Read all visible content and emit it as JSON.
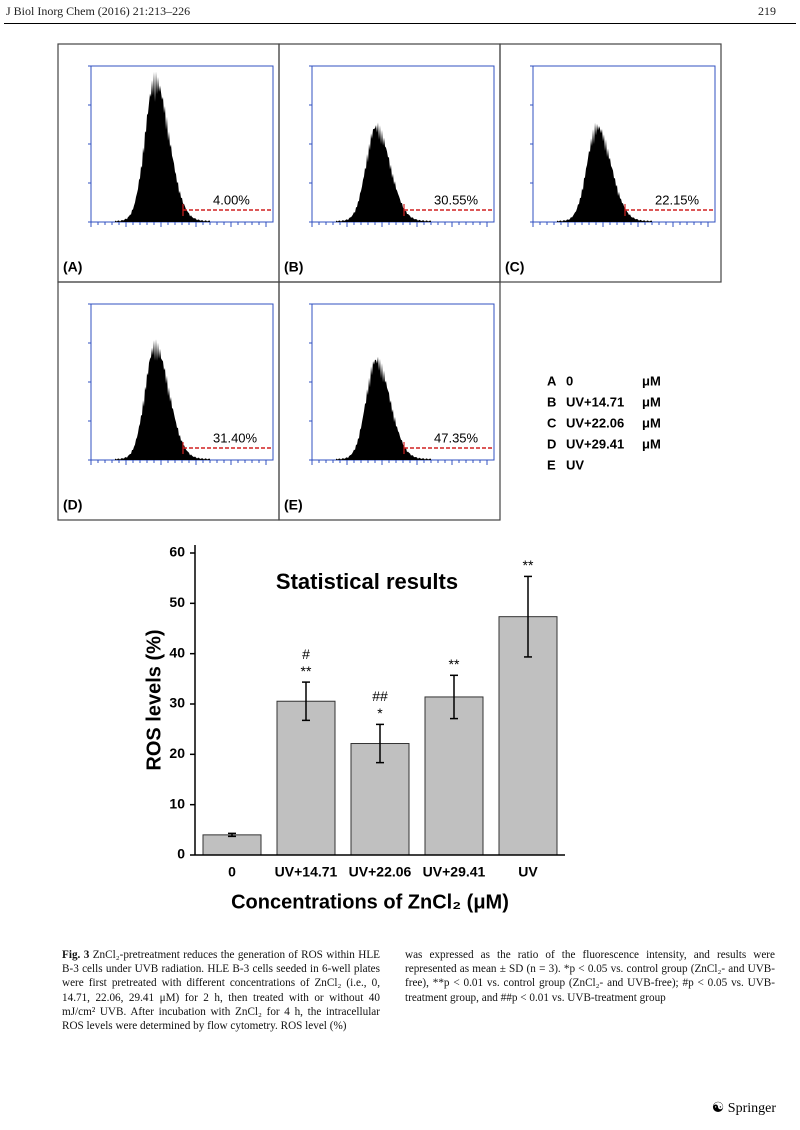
{
  "header": {
    "journal": "J Biol Inorg Chem (2016) 21:213–226",
    "page": "219"
  },
  "panels": [
    {
      "label": "(A)",
      "percent": "4.00%"
    },
    {
      "label": "(B)",
      "percent": "30.55%"
    },
    {
      "label": "(C)",
      "percent": "22.15%"
    },
    {
      "label": "(D)",
      "percent": "31.40%"
    },
    {
      "label": "(E)",
      "percent": "47.35%"
    }
  ],
  "legend": [
    {
      "letter": "A",
      "label": "0",
      "unit": "μM"
    },
    {
      "letter": "B",
      "label": "UV+14.71",
      "unit": "μM"
    },
    {
      "letter": "C",
      "label": "UV+22.06",
      "unit": "μM"
    },
    {
      "letter": "D",
      "label": "UV+29.41",
      "unit": "μM"
    },
    {
      "letter": "E",
      "label": "UV"
    }
  ],
  "chart_data": {
    "type": "bar",
    "title": "Statistical results",
    "y_label": "ROS levels (%)",
    "x_label": "Concentrations of ZnCl₂ (μM)",
    "categories": [
      "0",
      "UV+14.71",
      "UV+22.06",
      "UV+29.41",
      "UV"
    ],
    "values": [
      4.0,
      30.55,
      22.15,
      31.4,
      47.35
    ],
    "errors": [
      0.3,
      3.8,
      3.8,
      4.3,
      8.0
    ],
    "annotations": [
      [],
      [
        "#",
        "**"
      ],
      [
        "##",
        "*"
      ],
      [
        "**"
      ],
      [
        "**"
      ]
    ],
    "color": "#c0c0c0",
    "ylim": [
      0,
      60
    ],
    "yticks": [
      0,
      10,
      20,
      30,
      40,
      50,
      60
    ]
  },
  "caption": {
    "label": "Fig. 3",
    "left": "ZnCl₂-pretreatment reduces the generation of ROS within HLE B-3 cells under UVB radiation. HLE B-3 cells seeded in 6-well plates were first pretreated with different concentrations of ZnCl₂ (i.e., 0, 14.71, 22.06, 29.41 μM) for 2 h, then treated with or without 40 mJ/cm² UVB. After incubation with ZnCl₂ for 4 h, the intracellular ROS levels were determined by flow cytometry. ROS level (%)",
    "right": "was expressed as the ratio of the fluorescence intensity, and results were represented as mean ± SD (n = 3). *p < 0.05 vs. control group (ZnCl₂- and UVB-free), **p < 0.01 vs. control group (ZnCl₂- and UVB-free); #p < 0.05 vs. UVB-treatment group, and ##p < 0.01 vs. UVB-treatment group"
  },
  "footer": {
    "publisher": "Springer"
  }
}
